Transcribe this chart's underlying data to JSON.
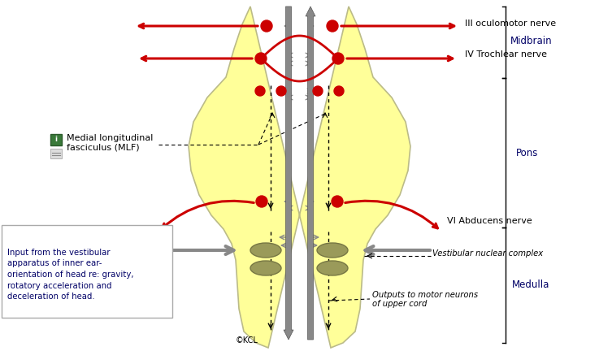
{
  "bg_color": "#ffffff",
  "brainstem_color": "#ffff99",
  "brainstem_edge": "#bbbb88",
  "nerve_color": "#cc0000",
  "gray_color": "#888888",
  "dark_gray": "#555555",
  "black": "#000000",
  "region_color": "#000066",
  "olive": "#9a9a5a",
  "olive_edge": "#777744",
  "copyright": "©KCL",
  "labels": {
    "III": "III oculomotor nerve",
    "IV": "IV Trochlear nerve",
    "VI": "VI Abducens nerve",
    "MLF_line1": "Medial longitudinal",
    "MLF_line2": "fasciculus (MLF)",
    "vestibular": "Vestibular nuclear complex",
    "outputs_line1": "Outputs to motor neurons",
    "outputs_line2": "of upper cord",
    "input_box": "Input from the vestibular\napparatus of inner ear-\norientation of head re: gravity,\nrotatory acceleration and\ndeceleration of head."
  },
  "regions": [
    "Midbrain",
    "Pons",
    "Medulla"
  ]
}
